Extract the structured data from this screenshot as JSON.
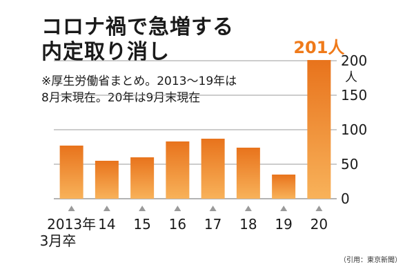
{
  "title_lines": [
    "コロナ禍で急増する",
    "内定取り消し"
  ],
  "note_lines": [
    "※厚生労働省まとめ。2013～19年は",
    "8月末現在。20年は9月末現在"
  ],
  "source": "（引用：東京新聞）",
  "colors": {
    "bar_top": "#e8731c",
    "bar_bottom": "#f8b25a",
    "accent": "#ef7a1a",
    "grid": "#9a9a9a",
    "marker": "#9a9a9a"
  },
  "chart_data": {
    "type": "bar",
    "title": "コロナ禍で急増する内定取り消し",
    "categories": [
      "2013年3月卒",
      "14",
      "15",
      "16",
      "17",
      "18",
      "19",
      "20"
    ],
    "category_lines": [
      [
        "2013年",
        "3月卒"
      ],
      [
        "14"
      ],
      [
        "15"
      ],
      [
        "16"
      ],
      [
        "17"
      ],
      [
        "18"
      ],
      [
        "19"
      ],
      [
        "20"
      ]
    ],
    "values": [
      77,
      55,
      60,
      83,
      87,
      74,
      35,
      201
    ],
    "data_labels": [
      {
        "index": 7,
        "text": "201人"
      }
    ],
    "ylim": [
      0,
      200
    ],
    "y_ticks": [
      0,
      50,
      100,
      150,
      200
    ],
    "y_unit": "人",
    "xlabel": "",
    "ylabel": "人",
    "y_axis_position": "right",
    "grid": true
  }
}
